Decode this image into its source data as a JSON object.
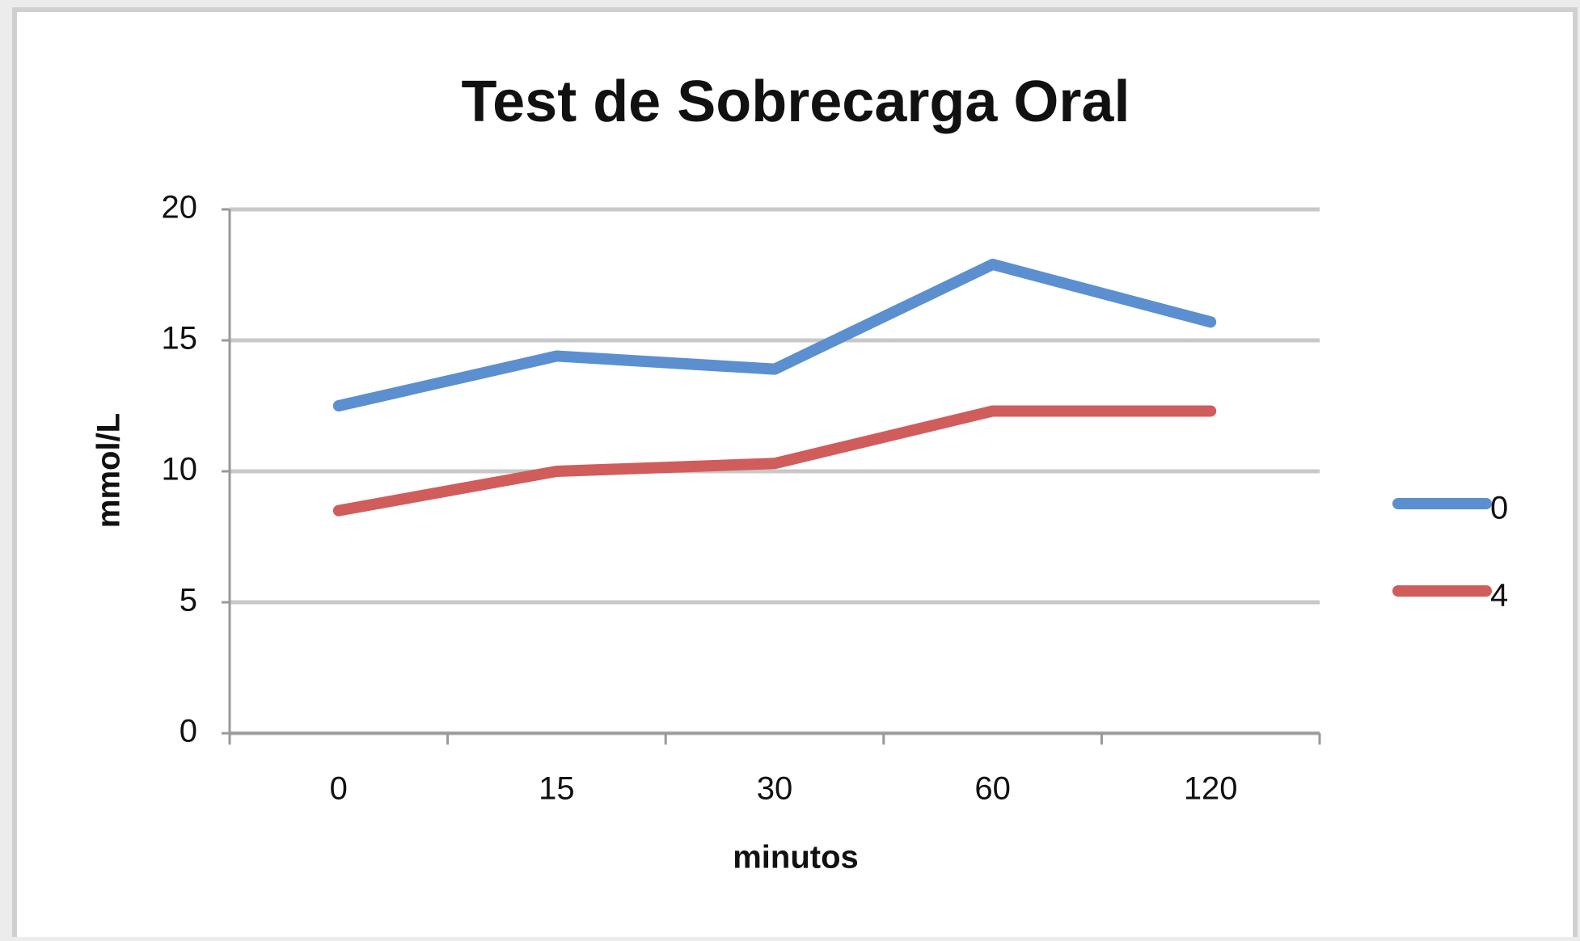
{
  "chart_data": {
    "type": "line",
    "title": "Test de Sobrecarga Oral",
    "x_label": "minutos",
    "y_label": "mmol/L",
    "categories": [
      "0",
      "15",
      "30",
      "60",
      "120"
    ],
    "series": [
      {
        "name": "0",
        "color": "#5b8fd0",
        "values": [
          12.5,
          14.4,
          13.9,
          17.9,
          15.7
        ]
      },
      {
        "name": "4",
        "color": "#d05d5b",
        "values": [
          8.5,
          10,
          10.3,
          12.3,
          12.3
        ]
      }
    ],
    "ylim": [
      0,
      20
    ],
    "yticks": [
      0,
      5,
      10,
      15,
      20
    ],
    "grid": true,
    "legend": "right"
  }
}
